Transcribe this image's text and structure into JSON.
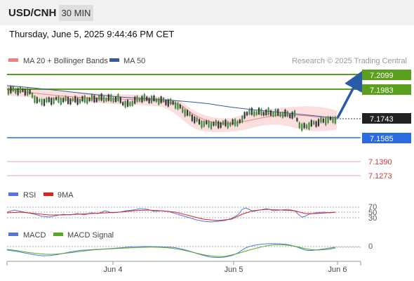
{
  "header": {
    "symbol": "USD/CNH",
    "timeframe": "30 MIN",
    "datetime": "Thursday, June 5, 2025 9:44:46 PM CET"
  },
  "colors": {
    "ma20": "#f08080",
    "ma50": "#3a5a9a",
    "resistance": "#5aa01e",
    "support": "#2d6be0",
    "price": "#222222",
    "rsi": "#5577dd",
    "rsi_ma": "#dd2222",
    "macd": "#5577dd",
    "macd_signal": "#55aa22",
    "arrow": "#2a5aa8"
  },
  "legend": {
    "ma20": "MA 20 + Bollinger Bands",
    "ma50": "MA 50",
    "credit": "Research © 2025 Trading Central"
  },
  "chart_data": [
    {
      "type": "line",
      "subtype": "candlestick",
      "series": [
        {
          "name": "MA 20 + Bollinger Bands",
          "y_start": 7.195,
          "y_mid": 7.182,
          "y_end": 7.176
        },
        {
          "name": "MA 50",
          "y_start": 7.199,
          "y_mid": 7.186,
          "y_end": 7.1745
        }
      ],
      "price_levels": [
        {
          "value": "7.2099",
          "kind": "resistance"
        },
        {
          "value": "7.1983",
          "kind": "resistance"
        },
        {
          "value": "7.1743",
          "kind": "last price"
        },
        {
          "value": "7.1585",
          "kind": "support"
        },
        {
          "value": "7.1390",
          "kind": "level"
        },
        {
          "value": "7.1273",
          "kind": "level"
        }
      ],
      "x_ticks": [
        "Jun 4",
        "Jun 5",
        "Jun 6"
      ],
      "forecast": "up, toward 7.2099"
    },
    {
      "type": "line",
      "series": [
        {
          "name": "RSI"
        },
        {
          "name": "9MA"
        }
      ],
      "y_ticks": [
        "70",
        "50",
        "30"
      ],
      "ylim": [
        0,
        100
      ],
      "last_value": 50
    },
    {
      "type": "line",
      "series": [
        {
          "name": "MACD"
        },
        {
          "name": "MACD Signal"
        }
      ],
      "y_ticks": [
        "0"
      ]
    }
  ]
}
